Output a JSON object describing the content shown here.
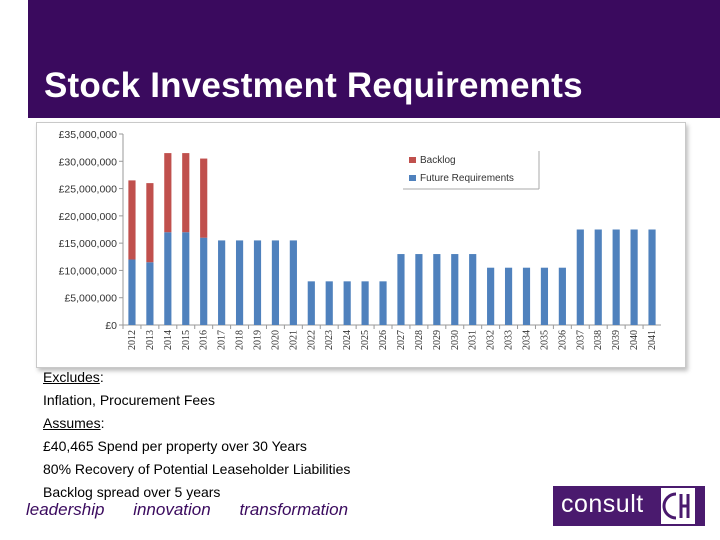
{
  "slide": {
    "title": "Stock Investment Requirements",
    "notes": {
      "excludes_label": "Excludes",
      "excludes_text": "Inflation, Procurement Fees",
      "assumes_label": "Assumes",
      "assumption_1": "£40,465 Spend per property over 30 Years",
      "assumption_2": "80% Recovery of Potential Leaseholder Liabilities",
      "assumption_3": "Backlog spread over 5 years"
    },
    "tagline": [
      "leadership",
      "innovation",
      "transformation"
    ],
    "logo_text": "consult",
    "colors": {
      "header": "#3a0a5e",
      "backlog": "#c0504d",
      "future": "#4f81bd"
    }
  },
  "chart_data": {
    "type": "bar",
    "stacked": true,
    "categories": [
      "2012",
      "2013",
      "2014",
      "2015",
      "2016",
      "2017",
      "2018",
      "2019",
      "2020",
      "2021",
      "2022",
      "2023",
      "2024",
      "2025",
      "2026",
      "2027",
      "2028",
      "2029",
      "2030",
      "2031",
      "2032",
      "2033",
      "2034",
      "2035",
      "2036",
      "2037",
      "2038",
      "2039",
      "2040",
      "2041"
    ],
    "series": [
      {
        "name": "Future Requirements",
        "color": "#4f81bd",
        "values": [
          12000000,
          11500000,
          17000000,
          17000000,
          16000000,
          15500000,
          15500000,
          15500000,
          15500000,
          15500000,
          8000000,
          8000000,
          8000000,
          8000000,
          8000000,
          13000000,
          13000000,
          13000000,
          13000000,
          13000000,
          10500000,
          10500000,
          10500000,
          10500000,
          10500000,
          17500000,
          17500000,
          17500000,
          17500000,
          17500000
        ]
      },
      {
        "name": "Backlog",
        "color": "#c0504d",
        "values": [
          14500000,
          14500000,
          14500000,
          14500000,
          14500000,
          0,
          0,
          0,
          0,
          0,
          0,
          0,
          0,
          0,
          0,
          0,
          0,
          0,
          0,
          0,
          0,
          0,
          0,
          0,
          0,
          0,
          0,
          0,
          0,
          0
        ]
      }
    ],
    "ylim": [
      0,
      35000000
    ],
    "yticks": [
      0,
      5000000,
      10000000,
      15000000,
      20000000,
      25000000,
      30000000,
      35000000
    ],
    "ytick_labels": [
      "£0",
      "£5,000,000",
      "£10,000,000",
      "£15,000,000",
      "£20,000,000",
      "£25,000,000",
      "£30,000,000",
      "£35,000,000"
    ],
    "legend": {
      "placement": "top-right",
      "entries": [
        "Backlog",
        "Future Requirements"
      ]
    },
    "grid": false
  }
}
